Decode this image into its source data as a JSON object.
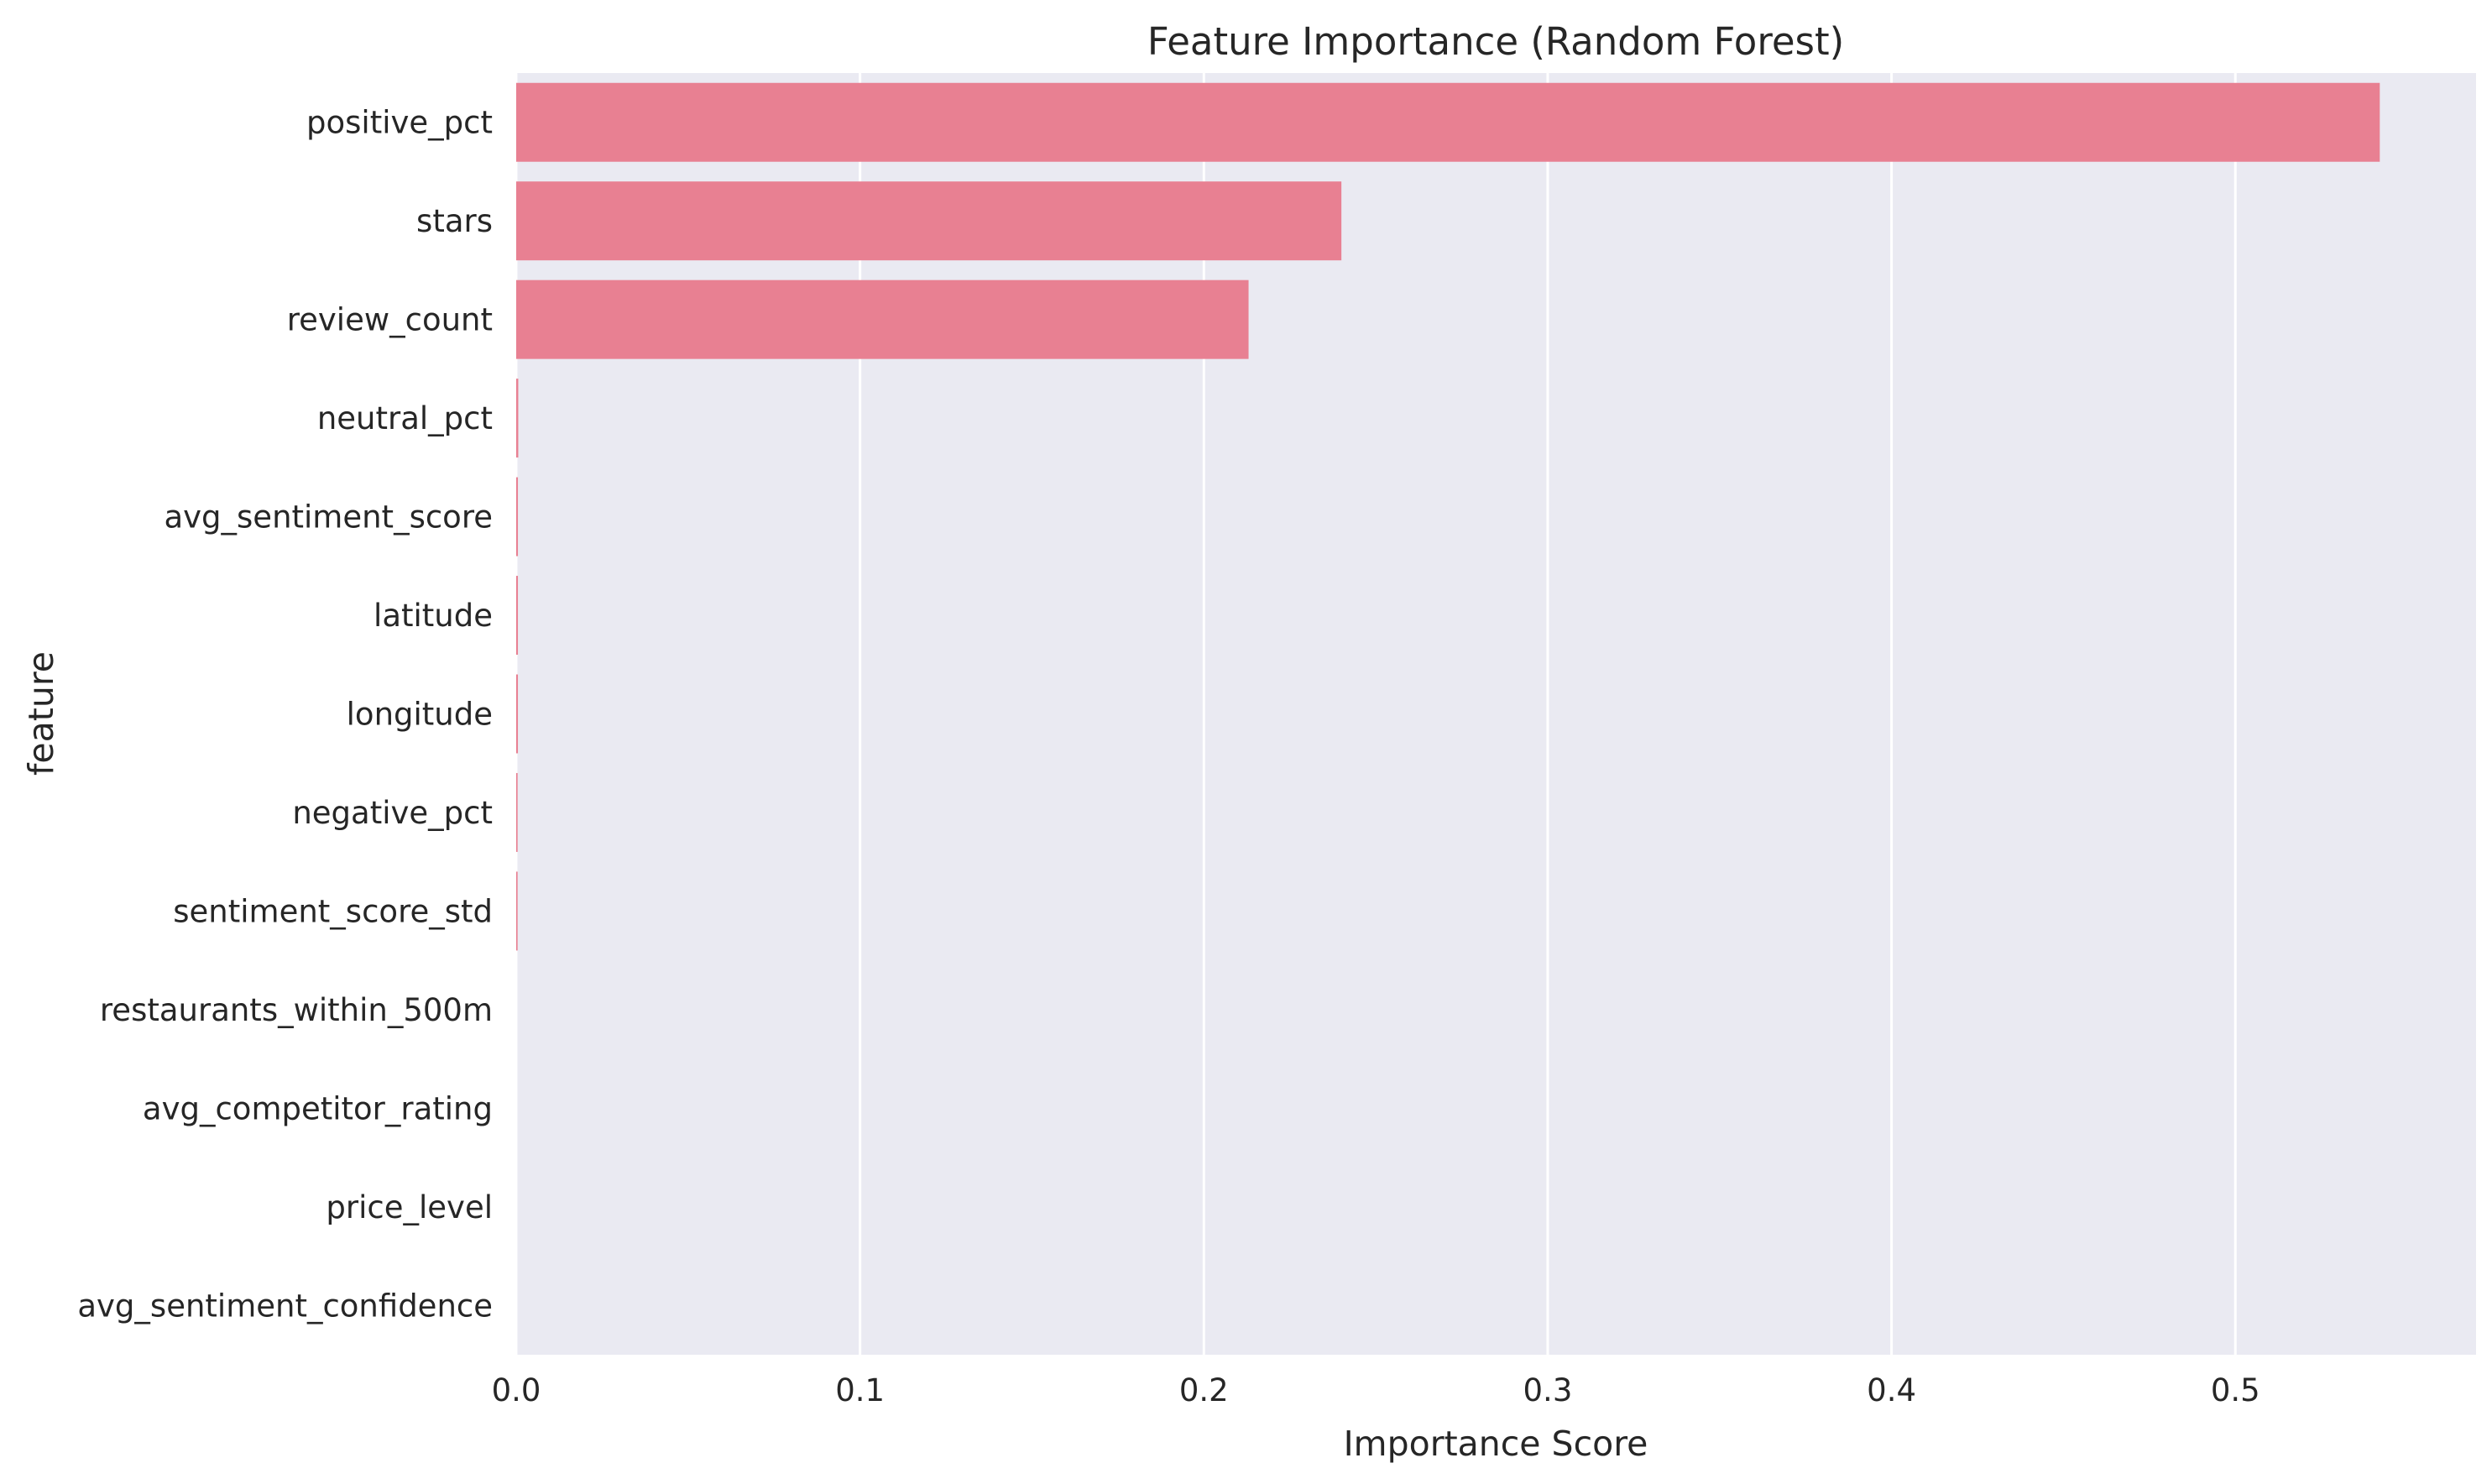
{
  "chart_data": {
    "type": "bar",
    "orientation": "horizontal",
    "title": "Feature Importance (Random Forest)",
    "xlabel": "Importance Score",
    "ylabel": "feature",
    "categories": [
      "positive_pct",
      "stars",
      "review_count",
      "neutral_pct",
      "avg_sentiment_score",
      "latitude",
      "longitude",
      "negative_pct",
      "sentiment_score_std",
      "restaurants_within_500m",
      "avg_competitor_rating",
      "price_level",
      "avg_sentiment_confidence"
    ],
    "values": [
      0.542,
      0.24,
      0.213,
      0.0006,
      0.0005,
      0.0005,
      0.0005,
      0.0004,
      0.0004,
      0.0,
      0.0,
      0.0,
      0.0
    ],
    "xlim": [
      0,
      0.57
    ],
    "xticks": [
      0.0,
      0.1,
      0.2,
      0.3,
      0.4,
      0.5
    ],
    "xtick_labels": [
      "0.0",
      "0.1",
      "0.2",
      "0.3",
      "0.4",
      "0.5"
    ],
    "grid": true,
    "legend": "none",
    "colors": {
      "bar": "#e88092",
      "plot_background": "#eaeaf2",
      "grid": "#ffffff",
      "text": "#262626"
    }
  }
}
